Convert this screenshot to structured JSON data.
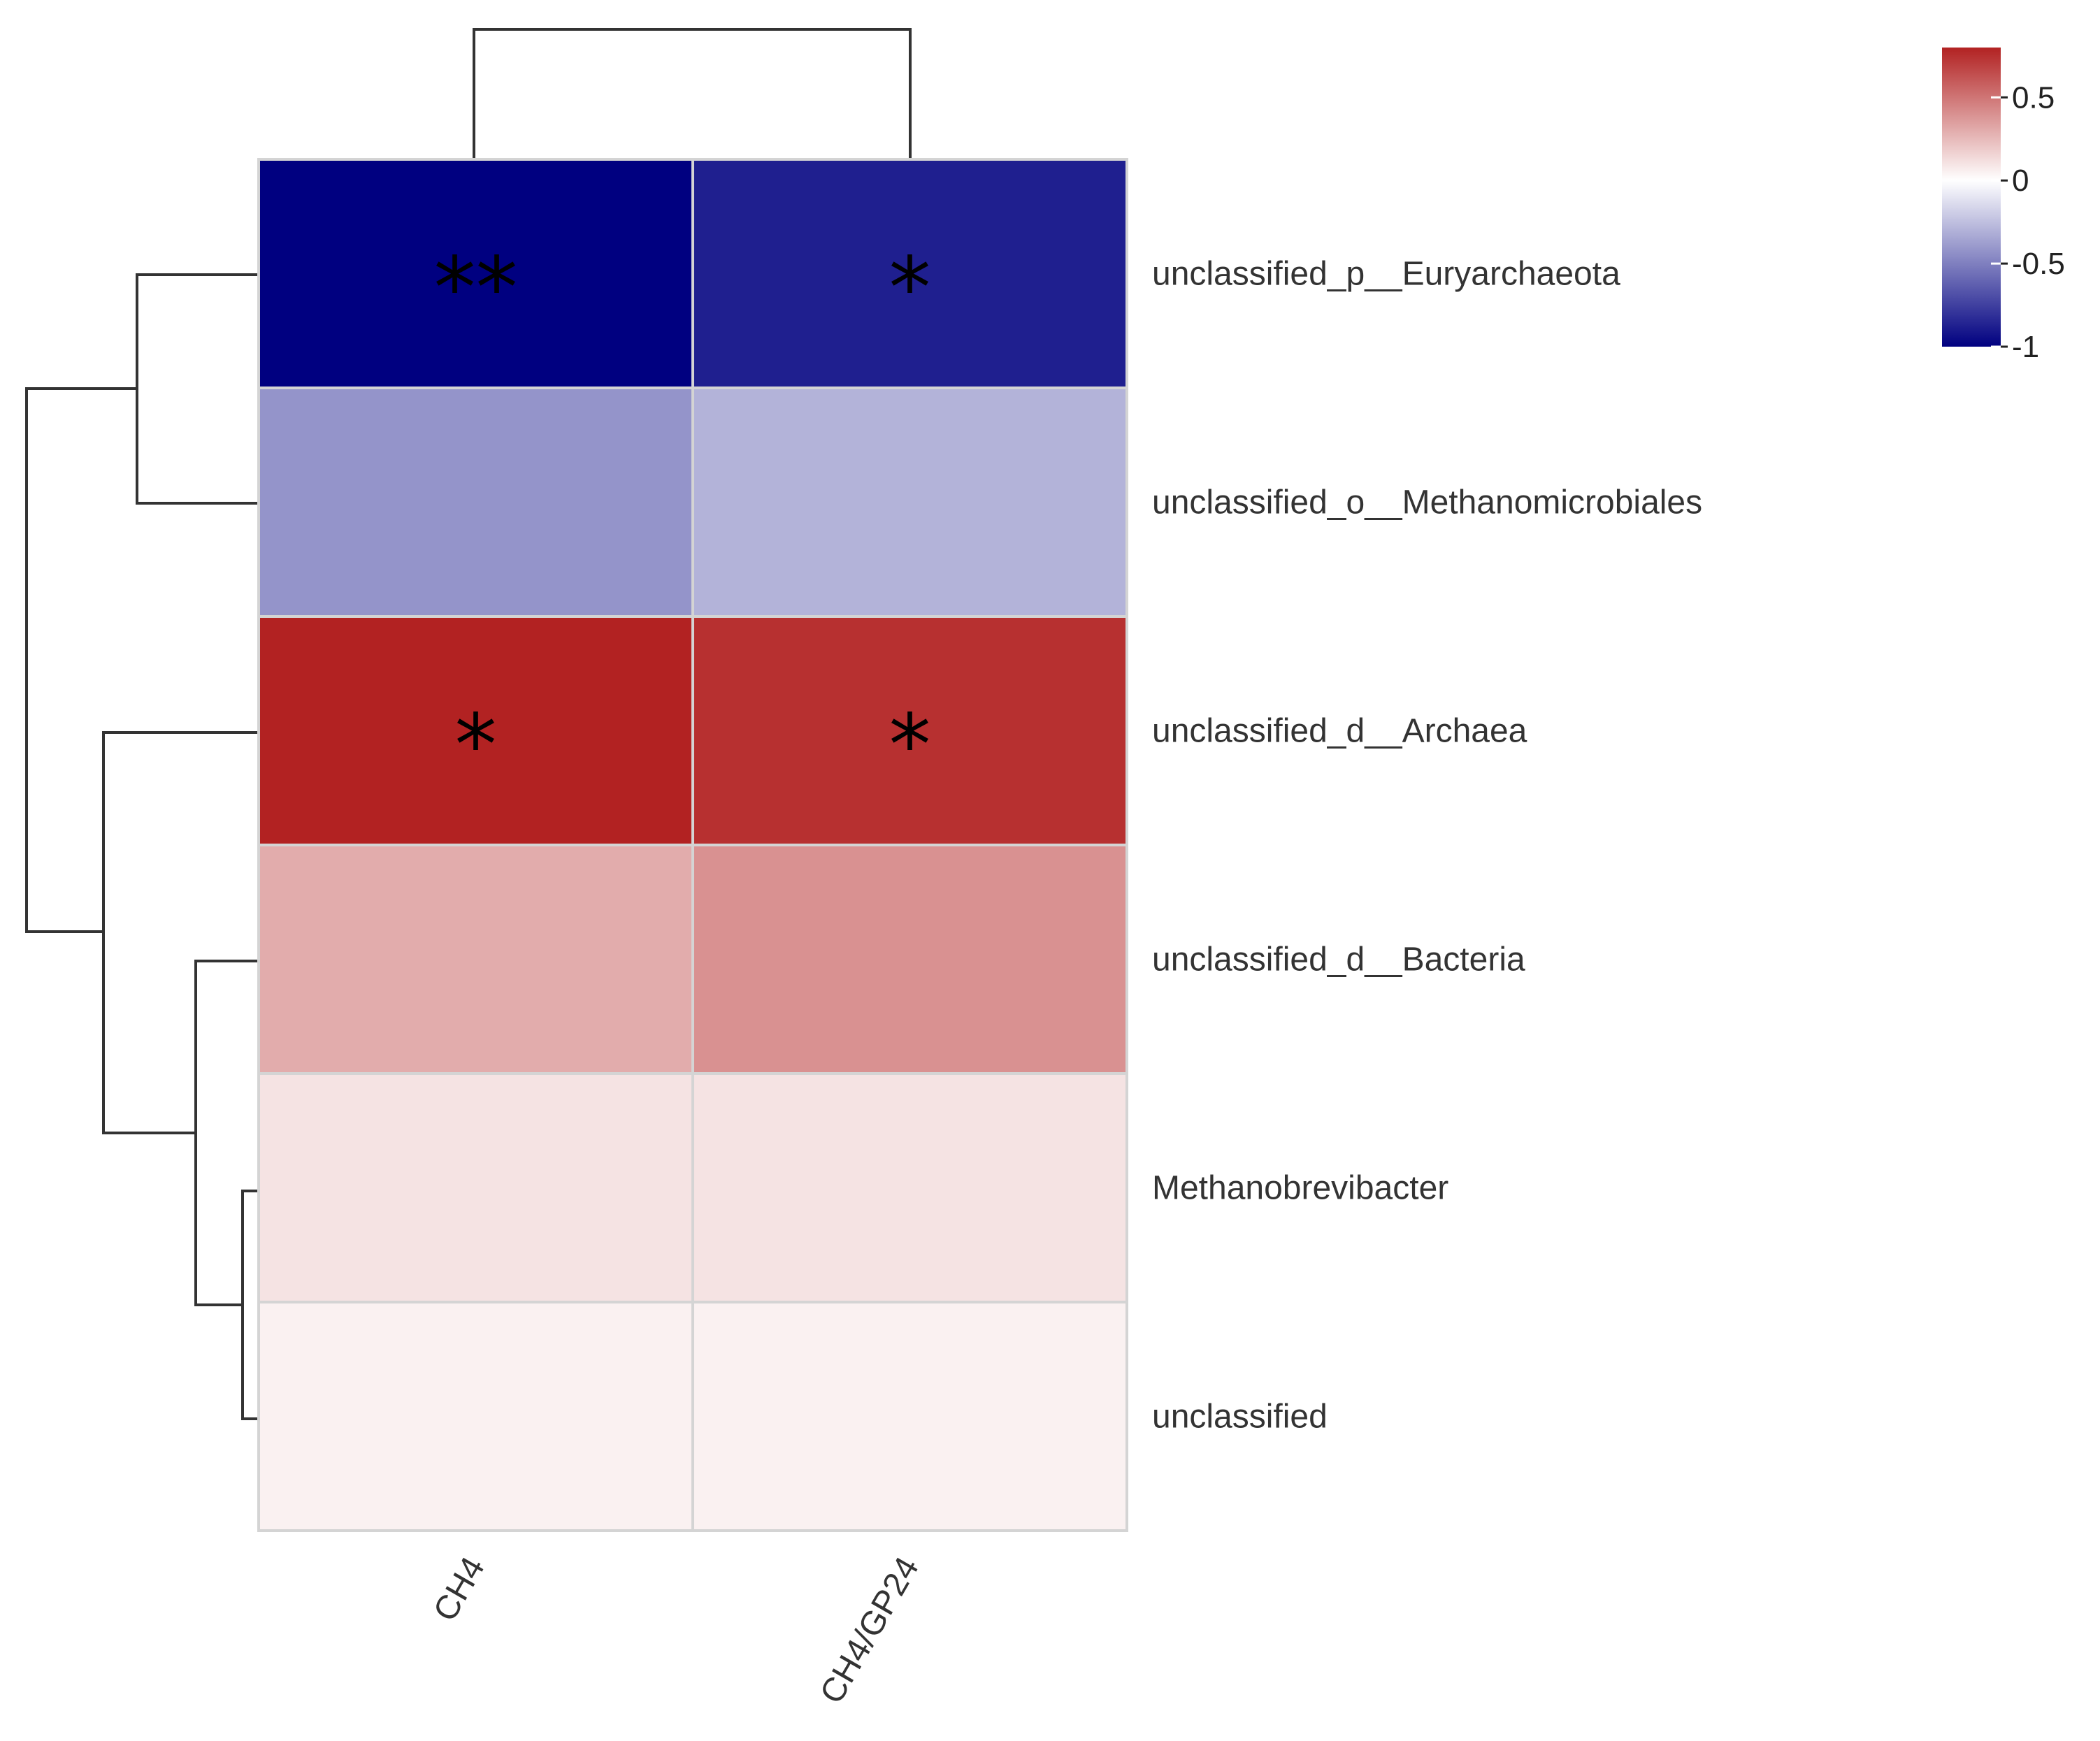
{
  "chart_data": {
    "type": "heatmap",
    "title": "",
    "xlabel": "",
    "ylabel": "",
    "columns": [
      "CH4",
      "CH4/GP24"
    ],
    "rows": [
      "unclassified_p__Euryarchaeota",
      "unclassified_o__Methanomicrobiales",
      "unclassified_d__Archaea",
      "unclassified_d__Bacteria",
      "Methanobrevibacter",
      "unclassified"
    ],
    "values": [
      [
        -1.0,
        -0.88
      ],
      [
        -0.42,
        -0.3
      ],
      [
        0.8,
        0.75
      ],
      [
        0.3,
        0.4
      ],
      [
        0.1,
        0.1
      ],
      [
        0.05,
        0.05
      ]
    ],
    "significance": [
      [
        "**",
        "*"
      ],
      [
        "",
        ""
      ],
      [
        "*",
        "*"
      ],
      [
        "",
        ""
      ],
      [
        "",
        ""
      ],
      [
        "",
        ""
      ]
    ],
    "color_scale": {
      "low": "#000080",
      "mid": "#ffffff",
      "high": "#b22222",
      "min": -1,
      "max": 0.8,
      "ticks": [
        0.5,
        0,
        -0.5,
        -1
      ],
      "tick_labels": [
        "0.5",
        "0",
        "-0.5",
        "-1"
      ]
    },
    "row_dendrogram": "((Euryarchaeota,Methanomicrobiales),(Archaea,(Bacteria,(Methanobrevibacter,unclassified))))",
    "column_dendrogram": "(CH4,CH4/GP24)",
    "legend_position": "top-right",
    "grid": false
  }
}
